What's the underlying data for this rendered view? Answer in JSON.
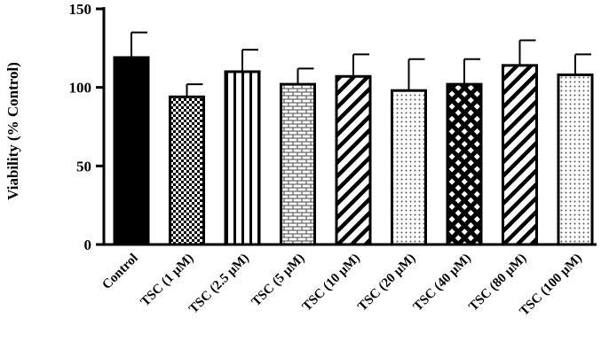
{
  "chart_data": {
    "type": "bar",
    "title": "",
    "xlabel": "",
    "ylabel": "Viability (% Control)",
    "ylim": [
      0,
      150
    ],
    "yticks": [
      0,
      50,
      100,
      150
    ],
    "grid": false,
    "categories": [
      "Control",
      "TSC (1 µM)",
      "TSC (2.5 µM)",
      "TSC (5 µM)",
      "TSC (10 µM)",
      "TSC (20 µM)",
      "TSC (40 µM)",
      "TSC (80 µM)",
      "TSC (100 µM)"
    ],
    "values": [
      119,
      94,
      110,
      102,
      107,
      98,
      102,
      114,
      108
    ],
    "error": [
      16,
      8,
      14,
      10,
      14,
      20,
      16,
      16,
      13
    ],
    "fill_patterns": [
      "solid",
      "checker",
      "vertical-lines",
      "bricks",
      "diagonal-lines",
      "dots",
      "crosshatch",
      "diagonal-lines",
      "dots"
    ]
  }
}
